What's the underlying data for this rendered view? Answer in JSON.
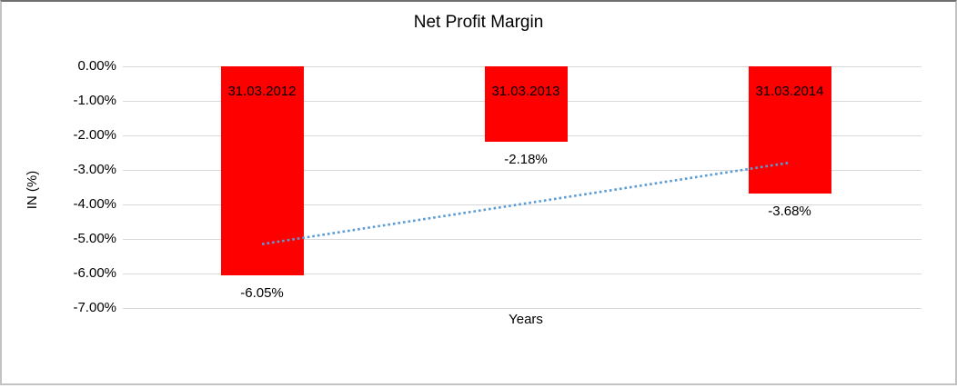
{
  "chart_data": {
    "type": "bar",
    "title": "Net Profit Margin",
    "xlabel": "Years",
    "ylabel": "IN (%)",
    "categories": [
      "31.03.2012",
      "31.03.2013",
      "31.03.2014"
    ],
    "values": [
      -6.05,
      -2.18,
      -3.68
    ],
    "value_labels": [
      "-6.05%",
      "-2.18%",
      "-3.68%"
    ],
    "ylim": [
      -7,
      0
    ],
    "ytick_step": 1,
    "ytick_labels": [
      "0.00%",
      "-1.00%",
      "-2.00%",
      "-3.00%",
      "-4.00%",
      "-5.00%",
      "-6.00%",
      "-7.00%"
    ],
    "grid": true,
    "legend": "none",
    "bar_color": "#ff0000",
    "gridline_color": "#d9d9d9",
    "trendline": {
      "type": "linear",
      "style": "dotted",
      "color": "#5b9bd5",
      "start_value": -5.15,
      "end_value": -2.79
    }
  }
}
